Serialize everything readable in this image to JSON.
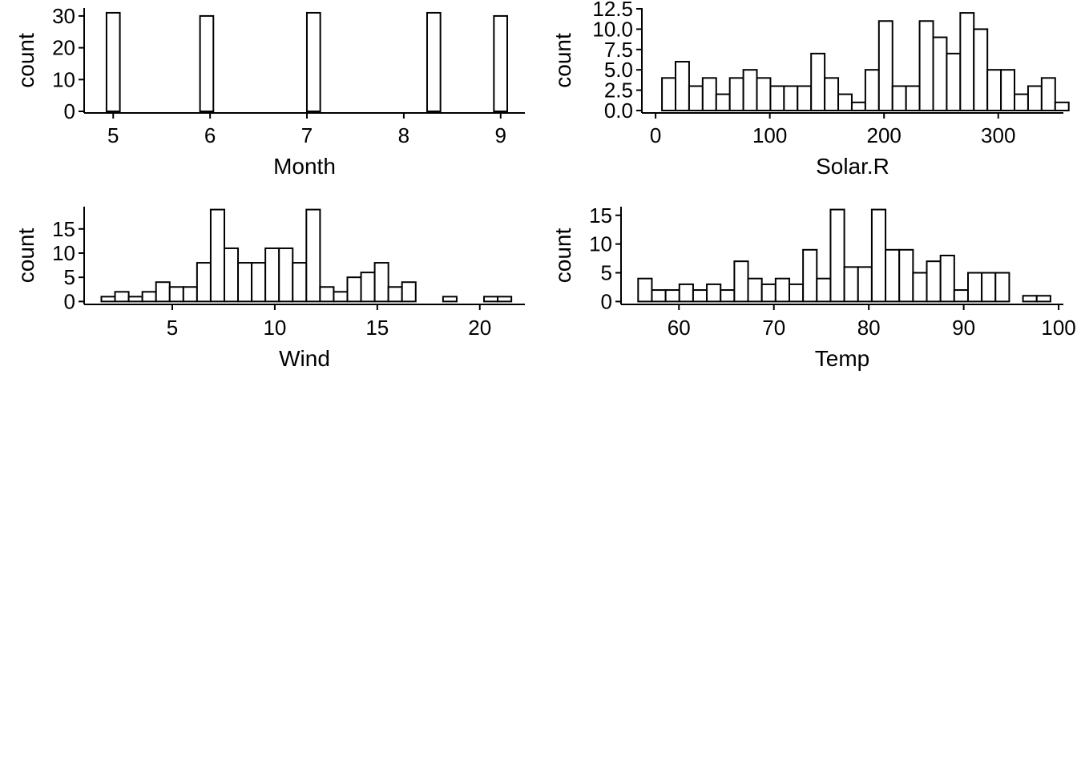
{
  "chart_data": [
    {
      "type": "bar",
      "title": "",
      "xlabel": "Month",
      "ylabel": "count",
      "xlim": [
        4.7,
        9.25
      ],
      "ylim": [
        -0.5,
        32.5
      ],
      "x_ticks": [
        5,
        6,
        7,
        8,
        9
      ],
      "x_tick_labels": [
        "5",
        "6",
        "7",
        "8",
        "9"
      ],
      "y_ticks": [
        0,
        10,
        20,
        30
      ],
      "y_tick_labels": [
        "0",
        "10",
        "20",
        "30"
      ],
      "bins": {
        "start": 4.931,
        "width": 0.1379,
        "counts": [
          31,
          0,
          0,
          0,
          0,
          0,
          0,
          30,
          0,
          0,
          0,
          0,
          0,
          0,
          0,
          31,
          0,
          0,
          0,
          0,
          0,
          0,
          0,
          0,
          31,
          0,
          0,
          0,
          0,
          30
        ]
      },
      "grid": false,
      "legend": "none"
    },
    {
      "type": "bar",
      "title": "",
      "xlabel": "Solar.R",
      "ylabel": "count",
      "xlim": [
        -12,
        357
      ],
      "ylim": [
        -0.3,
        12.6
      ],
      "x_ticks": [
        0,
        100,
        200,
        300
      ],
      "x_tick_labels": [
        "0",
        "100",
        "200",
        "300"
      ],
      "y_ticks": [
        0,
        2.5,
        5,
        7.5,
        10,
        12.5
      ],
      "y_tick_labels": [
        "0.0",
        "2.5",
        "5.0",
        "7.5",
        "10.0",
        "12.5"
      ],
      "bins": {
        "start": 5.6,
        "width": 11.87,
        "counts": [
          4,
          6,
          3,
          4,
          2,
          4,
          5,
          4,
          3,
          3,
          3,
          7,
          4,
          2,
          1,
          5,
          11,
          3,
          3,
          11,
          9,
          7,
          12,
          10,
          5,
          5,
          2,
          3,
          4,
          1
        ]
      },
      "grid": false,
      "legend": "none"
    },
    {
      "type": "bar",
      "title": "",
      "xlabel": "Wind",
      "ylabel": "count",
      "xlim": [
        0.7,
        22.2
      ],
      "ylim": [
        -0.6,
        19.6
      ],
      "x_ticks": [
        5,
        10,
        15,
        20
      ],
      "x_tick_labels": [
        "5",
        "10",
        "15",
        "20"
      ],
      "y_ticks": [
        0,
        5,
        10,
        15
      ],
      "y_tick_labels": [
        "0",
        "5",
        "10",
        "15"
      ],
      "bins": {
        "start": 1.54,
        "width": 0.6667,
        "counts": [
          1,
          2,
          1,
          2,
          4,
          3,
          3,
          8,
          19,
          11,
          8,
          8,
          11,
          11,
          8,
          19,
          3,
          2,
          5,
          6,
          8,
          3,
          4,
          0,
          0,
          1,
          0,
          0,
          1,
          1
        ]
      },
      "grid": false,
      "legend": "none"
    },
    {
      "type": "bar",
      "title": "",
      "xlabel": "Temp",
      "ylabel": "count",
      "xlim": [
        53.9,
        100.5
      ],
      "ylim": [
        -0.5,
        16.5
      ],
      "x_ticks": [
        60,
        70,
        80,
        90,
        100
      ],
      "x_tick_labels": [
        "60",
        "70",
        "80",
        "90",
        "100"
      ],
      "y_ticks": [
        0,
        5,
        10,
        15
      ],
      "y_tick_labels": [
        "0",
        "5",
        "10",
        "15"
      ],
      "bins": {
        "start": 55.7,
        "width": 1.448,
        "counts": [
          4,
          2,
          2,
          3,
          2,
          3,
          2,
          7,
          4,
          3,
          4,
          3,
          9,
          4,
          16,
          6,
          6,
          16,
          9,
          9,
          5,
          7,
          8,
          2,
          5,
          5,
          5,
          0,
          1,
          1
        ]
      },
      "grid": false,
      "legend": "none"
    }
  ]
}
